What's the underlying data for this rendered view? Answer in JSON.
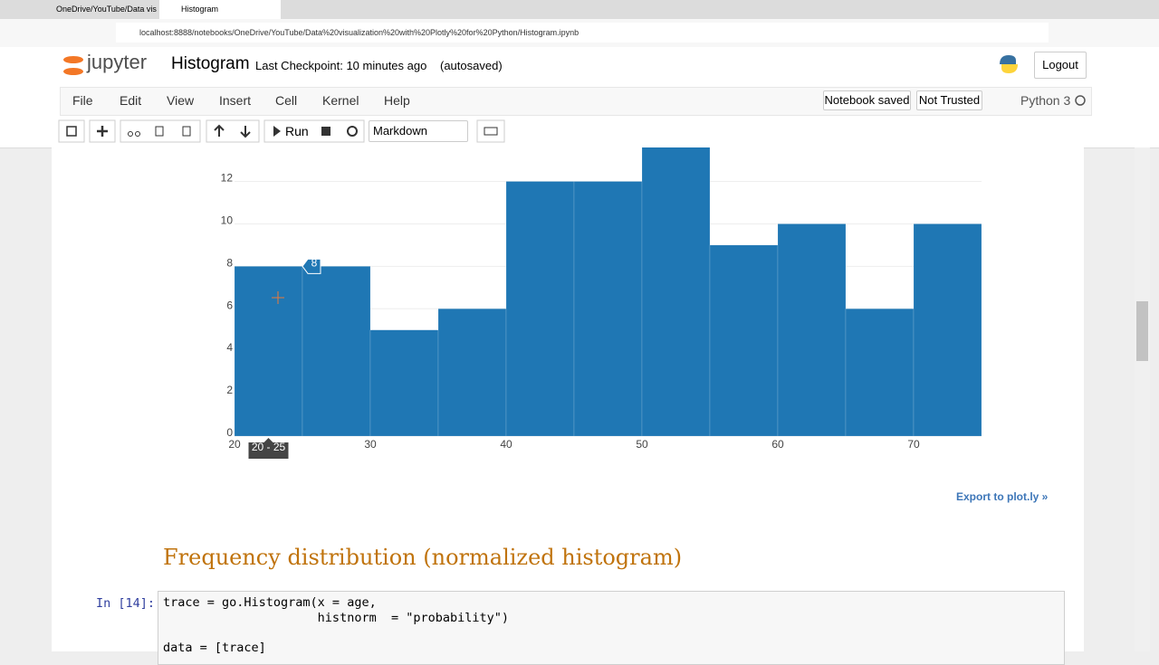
{
  "browser": {
    "tabs": [
      "OneDrive/YouTube/Data vis",
      "Histogram"
    ],
    "url": "localhost:8888/notebooks/OneDrive/YouTube/Data%20visualization%20with%20Plotly%20for%20Python/Histogram.ipynb"
  },
  "header": {
    "logo": "jupyter",
    "notebook_name": "Histogram",
    "checkpoint": "Last Checkpoint: 10 minutes ago",
    "autosave": "(autosaved)",
    "logout": "Logout"
  },
  "menu": [
    "File",
    "Edit",
    "View",
    "Insert",
    "Cell",
    "Kernel",
    "Help"
  ],
  "status": {
    "saved": "Notebook saved",
    "trust": "Not Trusted",
    "kernel": "Python 3"
  },
  "toolbar": {
    "run": "Run",
    "cell_type": "Markdown"
  },
  "chart_data": {
    "type": "histogram",
    "bins": [
      20,
      25,
      30,
      35,
      40,
      45,
      50,
      55,
      60,
      65,
      70,
      75
    ],
    "values": [
      8,
      8,
      5,
      6,
      12,
      12,
      14,
      9,
      10,
      6,
      10
    ],
    "color": "#1f77b4",
    "xlim": [
      20,
      75
    ],
    "ylim": [
      0,
      13.6
    ],
    "xticks": [
      20,
      30,
      40,
      50,
      60,
      70
    ],
    "yticks": [
      0,
      2,
      4,
      6,
      8,
      10,
      12
    ],
    "grid": true,
    "hover_range_label": "20 - 25"
  },
  "export_link": "Export to plot.ly »",
  "heading": "Frequency distribution (normalized histogram)",
  "code_cell": {
    "prompt": "In [14]:",
    "lines": [
      "trace = go.Histogram(x = age,",
      "                     histnorm  = \"probability\")",
      "data = [trace]"
    ]
  }
}
